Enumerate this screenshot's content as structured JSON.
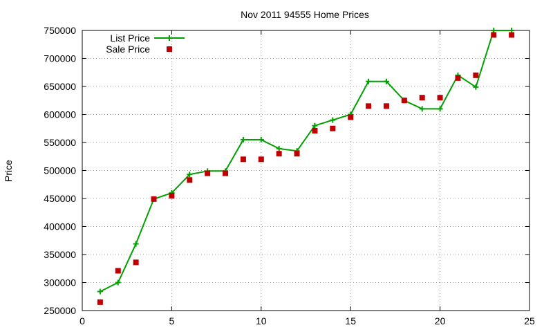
{
  "chart_data": {
    "type": "line",
    "title": "Nov 2011 94555 Home Prices",
    "xlabel": "",
    "ylabel": "Price",
    "xlim": [
      0,
      25
    ],
    "ylim": [
      250000,
      750000
    ],
    "xticks": [
      "0",
      "5",
      "10",
      "15",
      "20",
      "25"
    ],
    "yticks": [
      "250000",
      "300000",
      "350000",
      "400000",
      "450000",
      "500000",
      "550000",
      "600000",
      "650000",
      "700000",
      "750000"
    ],
    "grid": true,
    "legend_position": "top-left",
    "x": [
      1,
      2,
      3,
      4,
      5,
      6,
      7,
      8,
      9,
      10,
      11,
      12,
      13,
      14,
      15,
      16,
      17,
      18,
      19,
      20,
      21,
      22,
      23,
      24
    ],
    "series": [
      {
        "name": "List Price",
        "style": "line-plus",
        "color": "#00a000",
        "values": [
          284000,
          300000,
          369000,
          449000,
          460000,
          493000,
          499000,
          499000,
          555000,
          555000,
          539000,
          535000,
          580000,
          590000,
          600000,
          659000,
          659000,
          625000,
          610000,
          610000,
          670000,
          649000,
          750000,
          750000
        ]
      },
      {
        "name": "Sale Price",
        "style": "square",
        "color": "#c00000",
        "values": [
          265000,
          321000,
          336000,
          449000,
          455000,
          483000,
          495000,
          495000,
          520000,
          520000,
          530000,
          530000,
          571000,
          575000,
          595000,
          615000,
          615000,
          625000,
          630000,
          630000,
          665000,
          670000,
          742000,
          742000
        ]
      }
    ]
  }
}
